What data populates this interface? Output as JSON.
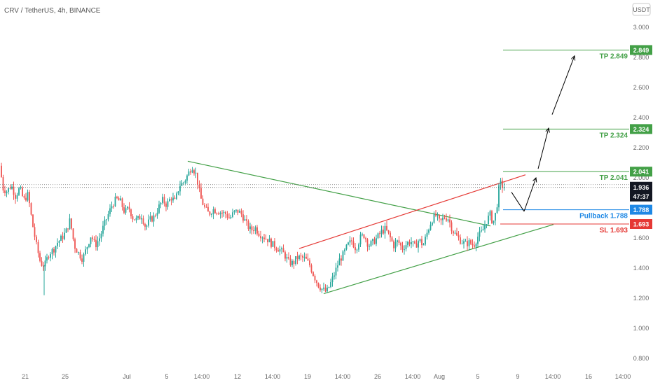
{
  "header": {
    "symbol": "CRV / TetherUS, 4h, BINANCE",
    "currency_button": "USDT"
  },
  "colors": {
    "up": "#26a69a",
    "down": "#ef5350",
    "tp": "#43a047",
    "sl": "#e53935",
    "pullback": "#1e88e5",
    "current": "#131722"
  },
  "chart_data": {
    "type": "candlestick",
    "title": "CRV / TetherUS, 4h, BINANCE",
    "y_axis": {
      "ylim": [
        0.8,
        3.1
      ],
      "ticks": [
        "3.000",
        "2.800",
        "2.600",
        "2.400",
        "2.200",
        "2.000",
        "1.800",
        "1.600",
        "1.400",
        "1.200",
        "1.000",
        "0.800"
      ],
      "position": "right"
    },
    "x_axis": {
      "ticks": [
        "21",
        "25",
        "Jul",
        "5",
        "14:00",
        "12",
        "14:00",
        "19",
        "14:00",
        "26",
        "14:00",
        "Aug",
        "5",
        "9",
        "14:00",
        "16",
        "14:00"
      ]
    },
    "price_path": [
      [
        0,
        2.08
      ],
      [
        4,
        1.93
      ],
      [
        10,
        1.91
      ],
      [
        16,
        1.95
      ],
      [
        22,
        1.88
      ],
      [
        28,
        1.93
      ],
      [
        34,
        1.85
      ],
      [
        40,
        1.89
      ],
      [
        46,
        1.7
      ],
      [
        52,
        1.55
      ],
      [
        58,
        1.43
      ],
      [
        64,
        1.42
      ],
      [
        70,
        1.5
      ],
      [
        76,
        1.52
      ],
      [
        82,
        1.57
      ],
      [
        88,
        1.6
      ],
      [
        94,
        1.64
      ],
      [
        100,
        1.72
      ],
      [
        106,
        1.55
      ],
      [
        112,
        1.5
      ],
      [
        118,
        1.46
      ],
      [
        124,
        1.54
      ],
      [
        130,
        1.62
      ],
      [
        136,
        1.55
      ],
      [
        142,
        1.6
      ],
      [
        148,
        1.68
      ],
      [
        154,
        1.75
      ],
      [
        160,
        1.82
      ],
      [
        166,
        1.86
      ],
      [
        172,
        1.84
      ],
      [
        178,
        1.77
      ],
      [
        184,
        1.8
      ],
      [
        190,
        1.73
      ],
      [
        196,
        1.72
      ],
      [
        202,
        1.75
      ],
      [
        208,
        1.67
      ],
      [
        214,
        1.72
      ],
      [
        220,
        1.74
      ],
      [
        226,
        1.8
      ],
      [
        232,
        1.85
      ],
      [
        238,
        1.82
      ],
      [
        244,
        1.87
      ],
      [
        250,
        1.84
      ],
      [
        256,
        1.95
      ],
      [
        262,
        1.97
      ],
      [
        268,
        2.02
      ],
      [
        274,
        2.08
      ],
      [
        280,
        2.02
      ],
      [
        286,
        1.87
      ],
      [
        292,
        1.8
      ],
      [
        298,
        1.76
      ],
      [
        304,
        1.79
      ],
      [
        310,
        1.78
      ],
      [
        316,
        1.77
      ],
      [
        322,
        1.76
      ],
      [
        328,
        1.73
      ],
      [
        334,
        1.77
      ],
      [
        340,
        1.78
      ],
      [
        346,
        1.75
      ],
      [
        352,
        1.69
      ],
      [
        358,
        1.65
      ],
      [
        364,
        1.67
      ],
      [
        370,
        1.63
      ],
      [
        376,
        1.61
      ],
      [
        382,
        1.59
      ],
      [
        388,
        1.56
      ],
      [
        394,
        1.54
      ],
      [
        400,
        1.52
      ],
      [
        406,
        1.49
      ],
      [
        412,
        1.44
      ],
      [
        418,
        1.43
      ],
      [
        424,
        1.47
      ],
      [
        430,
        1.47
      ],
      [
        436,
        1.46
      ],
      [
        442,
        1.42
      ],
      [
        448,
        1.35
      ],
      [
        454,
        1.29
      ],
      [
        460,
        1.26
      ],
      [
        466,
        1.24
      ],
      [
        472,
        1.3
      ],
      [
        478,
        1.37
      ],
      [
        484,
        1.45
      ],
      [
        490,
        1.49
      ],
      [
        496,
        1.55
      ],
      [
        502,
        1.58
      ],
      [
        508,
        1.53
      ],
      [
        514,
        1.6
      ],
      [
        520,
        1.62
      ],
      [
        526,
        1.55
      ],
      [
        532,
        1.57
      ],
      [
        538,
        1.6
      ],
      [
        544,
        1.64
      ],
      [
        550,
        1.66
      ],
      [
        556,
        1.61
      ],
      [
        562,
        1.55
      ],
      [
        568,
        1.58
      ],
      [
        574,
        1.53
      ],
      [
        580,
        1.56
      ],
      [
        586,
        1.58
      ],
      [
        592,
        1.54
      ],
      [
        598,
        1.59
      ],
      [
        604,
        1.55
      ],
      [
        610,
        1.64
      ],
      [
        616,
        1.72
      ],
      [
        622,
        1.75
      ],
      [
        628,
        1.7
      ],
      [
        634,
        1.74
      ],
      [
        640,
        1.73
      ],
      [
        646,
        1.65
      ],
      [
        652,
        1.61
      ],
      [
        658,
        1.58
      ],
      [
        664,
        1.56
      ],
      [
        670,
        1.57
      ],
      [
        676,
        1.55
      ],
      [
        682,
        1.61
      ],
      [
        688,
        1.64
      ],
      [
        694,
        1.71
      ],
      [
        700,
        1.76
      ],
      [
        703,
        1.7
      ],
      [
        706,
        1.73
      ],
      [
        710,
        1.84
      ],
      [
        713,
        1.97
      ],
      [
        716,
        1.95
      ],
      [
        720,
        1.936
      ]
    ],
    "levels": [
      {
        "name": "TP 2.849",
        "price": 2.849,
        "tag": "2.849",
        "type": "tp"
      },
      {
        "name": "TP 2.324",
        "price": 2.324,
        "tag": "2.324",
        "type": "tp"
      },
      {
        "name": "TP 2.041",
        "price": 2.041,
        "tag": "2.041",
        "type": "tp"
      },
      {
        "name": "Pullback 1.788",
        "price": 1.788,
        "tag": "1.788",
        "type": "pullback"
      },
      {
        "name": "SL 1.693",
        "price": 1.693,
        "tag": "1.693",
        "type": "sl"
      }
    ],
    "current_price": {
      "value": "1.936",
      "countdown": "47:37"
    },
    "trendlines": [
      {
        "type": "descending resistance",
        "color": "#43a047",
        "from": [
          268,
          2.11
        ],
        "to": [
          700,
          1.68
        ]
      },
      {
        "type": "channel top",
        "color": "#e53935",
        "from": [
          427,
          1.53
        ],
        "to": [
          750,
          2.02
        ]
      },
      {
        "type": "channel bottom",
        "color": "#43a047",
        "from": [
          462,
          1.23
        ],
        "to": [
          790,
          1.69
        ]
      }
    ],
    "projection_arrows": [
      {
        "from": [
          730,
          1.905
        ],
        "to": [
          748,
          1.777
        ]
      },
      {
        "from": [
          748,
          1.777
        ],
        "to": [
          765,
          2.0
        ]
      },
      {
        "from": [
          768,
          2.06
        ],
        "to": [
          783,
          2.33
        ]
      },
      {
        "from": [
          788,
          2.42
        ],
        "to": [
          820,
          2.81
        ]
      }
    ]
  }
}
